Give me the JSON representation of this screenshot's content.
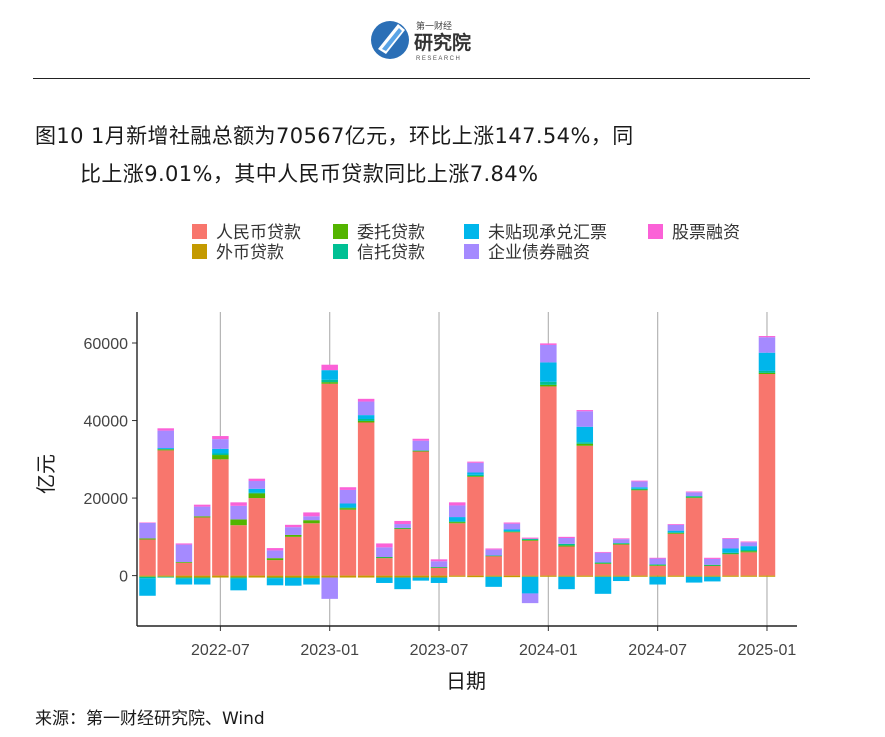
{
  "header": {
    "logo_cn_small": "第一财经",
    "logo_cn": "研究院",
    "logo_en": "RESEARCH"
  },
  "title": {
    "line1": "图10 1月新增社融总额为70567亿元，环比上涨147.54%，同",
    "line2": "比上涨9.01%，其中人民币贷款同比上涨7.84%"
  },
  "source": "来源：第一财经研究院、Wind",
  "colors": {
    "rmb_loans": "#F8766D",
    "fx_loans": "#C49A00",
    "entrusted": "#53B400",
    "trust": "#00C094",
    "bankers_accept": "#00B6EB",
    "corp_bonds": "#A58AFF",
    "equity": "#FB61D7"
  },
  "chart_data": {
    "type": "bar",
    "stacked": true,
    "xlabel": "日期",
    "ylabel": "亿元",
    "ylim": [
      -13000,
      68000
    ],
    "yticks": [
      0,
      20000,
      40000,
      60000
    ],
    "x_ticks": [
      "2022-07",
      "2023-01",
      "2023-07",
      "2024-01",
      "2024-07",
      "2025-01"
    ],
    "x_tick_positions": [
      4,
      10,
      16,
      22,
      28,
      34
    ],
    "grid": "vertical lines at x ticks",
    "legend_position": "top",
    "categories": [
      "2022-03",
      "2022-04",
      "2022-05",
      "2022-06",
      "2022-07",
      "2022-08",
      "2022-09",
      "2022-10",
      "2022-11",
      "2022-12",
      "2023-01",
      "2023-02",
      "2023-03",
      "2023-04",
      "2023-05",
      "2023-06",
      "2023-07",
      "2023-08",
      "2023-09",
      "2023-10",
      "2023-11",
      "2023-12",
      "2024-01",
      "2024-02",
      "2024-03",
      "2024-04",
      "2024-05",
      "2024-06",
      "2024-07",
      "2024-08",
      "2024-09",
      "2024-10",
      "2024-11",
      "2024-12",
      "2025-01"
    ],
    "series": [
      {
        "key": "rmb_loans",
        "name": "人民币贷款",
        "values": [
          9300,
          32300,
          3300,
          15000,
          30000,
          13000,
          20000,
          4000,
          10000,
          13500,
          49500,
          17000,
          39500,
          4500,
          12000,
          32000,
          2000,
          13500,
          25500,
          5000,
          11200,
          9000,
          48800,
          7500,
          33500,
          3000,
          8000,
          22000,
          2500,
          10800,
          20000,
          2500,
          5500,
          6000,
          52000
        ]
      },
      {
        "key": "fx_loans",
        "name": "外币贷款",
        "values": [
          -300,
          -300,
          -500,
          -500,
          -500,
          -500,
          -500,
          -500,
          -500,
          -600,
          -500,
          -500,
          -500,
          -500,
          -500,
          -500,
          -500,
          -300,
          -400,
          -300,
          -400,
          -300,
          -300,
          -300,
          -300,
          -300,
          -300,
          -300,
          -300,
          -300,
          -300,
          -300,
          -300,
          -300,
          -300
        ]
      },
      {
        "key": "entrusted",
        "name": "委托贷款",
        "values": [
          300,
          300,
          200,
          300,
          1100,
          1500,
          1200,
          500,
          500,
          800,
          400,
          400,
          400,
          200,
          200,
          200,
          100,
          300,
          200,
          100,
          100,
          200,
          400,
          300,
          500,
          200,
          200,
          200,
          200,
          200,
          200,
          100,
          200,
          300,
          300
        ]
      },
      {
        "key": "trust",
        "name": "信托贷款",
        "values": [
          -400,
          -200,
          -300,
          -300,
          400,
          -300,
          200,
          -200,
          -100,
          -200,
          600,
          200,
          500,
          100,
          100,
          100,
          100,
          200,
          300,
          100,
          200,
          300,
          800,
          400,
          400,
          200,
          200,
          200,
          200,
          200,
          300,
          200,
          200,
          300,
          500
        ]
      },
      {
        "key": "bankers_accept",
        "name": "未贴现承兑汇票",
        "values": [
          -4500,
          300,
          -1500,
          -1500,
          1200,
          -3000,
          1000,
          -1800,
          -2000,
          -1500,
          2500,
          1000,
          1000,
          -1400,
          -3000,
          -800,
          -1400,
          1100,
          600,
          -2600,
          400,
          -4300,
          5000,
          -3200,
          4000,
          -4400,
          -1100,
          400,
          -2000,
          400,
          -1500,
          -1200,
          1100,
          1000,
          4700
        ]
      },
      {
        "key": "corp_bonds",
        "name": "企业债券融资",
        "values": [
          4000,
          4500,
          4500,
          2500,
          2500,
          3500,
          2000,
          2000,
          2000,
          1000,
          -5500,
          3500,
          3500,
          2500,
          1000,
          2500,
          1500,
          3000,
          2500,
          1500,
          1500,
          -2500,
          4500,
          1500,
          4000,
          2500,
          1000,
          1500,
          1500,
          1500,
          1000,
          1500,
          2500,
          1000,
          4000
        ]
      },
      {
        "key": "equity",
        "name": "股票融资",
        "values": [
          100,
          600,
          300,
          500,
          800,
          900,
          600,
          600,
          600,
          1000,
          1400,
          700,
          700,
          1000,
          800,
          500,
          500,
          800,
          300,
          300,
          300,
          300,
          400,
          300,
          300,
          200,
          200,
          200,
          200,
          200,
          200,
          300,
          200,
          200,
          300
        ]
      }
    ],
    "legend_order": [
      "rmb_loans",
      "entrusted",
      "bankers_accept",
      "equity",
      "fx_loans",
      "trust",
      "corp_bonds"
    ]
  }
}
